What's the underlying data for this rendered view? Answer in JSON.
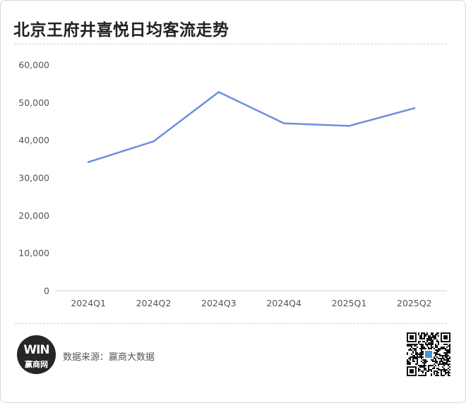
{
  "title": "北京王府井喜悦日均客流走势",
  "source_text": "数据来源：赢商大数据",
  "logo": {
    "mark": "WIN",
    "name": "赢商网"
  },
  "icons": {
    "logo": "winshang-logo-icon",
    "qr": "qr-code-icon"
  },
  "colors": {
    "line": "#6b8fe0",
    "axis": "#d0d0d0",
    "text": "#555555"
  },
  "chart_data": {
    "type": "line",
    "title": "北京王府井喜悦日均客流走势",
    "categories": [
      "2024Q1",
      "2024Q2",
      "2024Q3",
      "2024Q4",
      "2025Q1",
      "2025Q2"
    ],
    "series": [
      {
        "values": [
          34200,
          39700,
          52800,
          44500,
          43800,
          48500
        ]
      }
    ],
    "ylim": [
      0,
      60000
    ],
    "yticks": [
      "0",
      "10,000",
      "20,000",
      "30,000",
      "40,000",
      "50,000",
      "60,000"
    ],
    "grid": false,
    "legend": "none"
  }
}
